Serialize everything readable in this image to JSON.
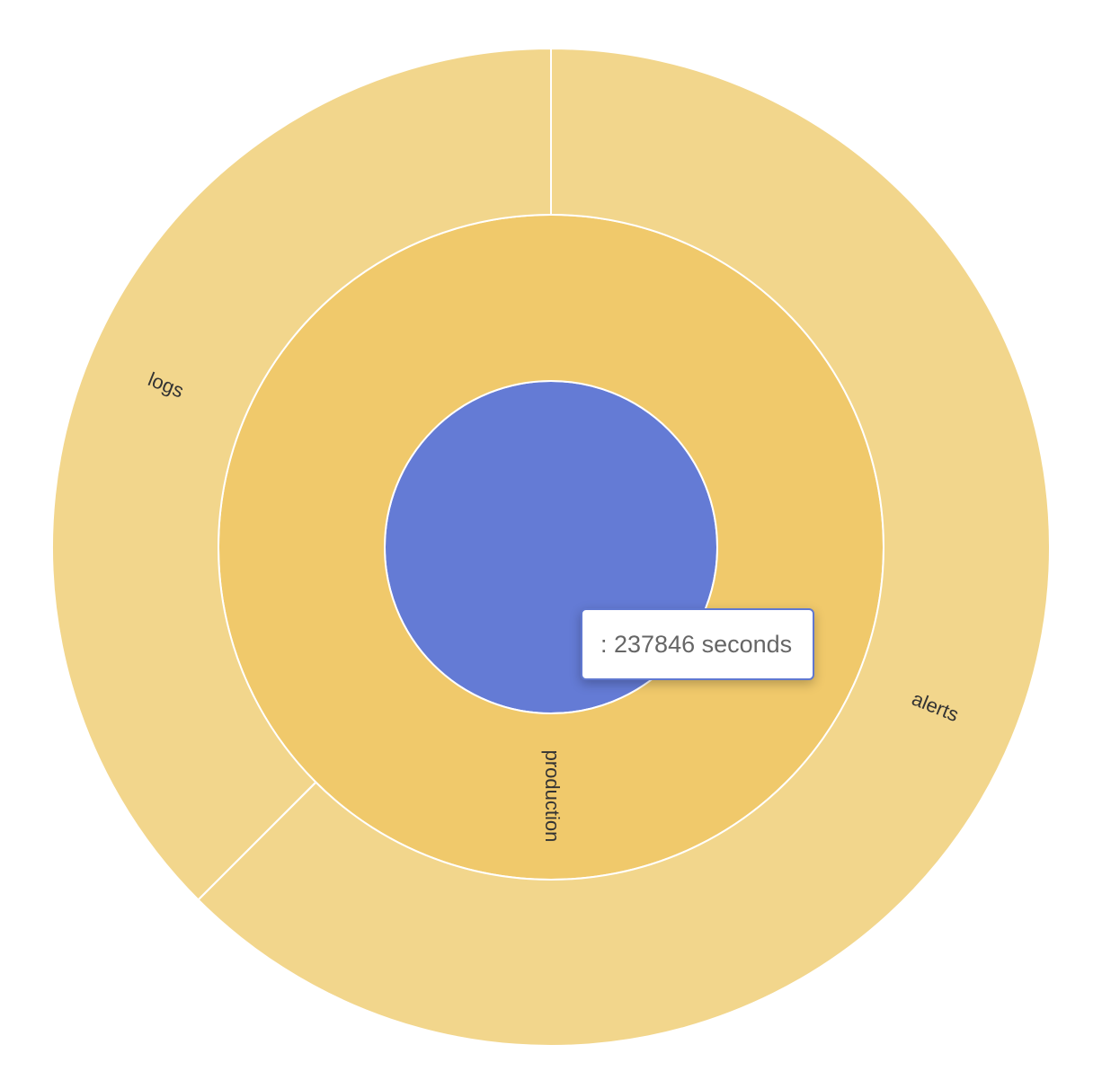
{
  "chart_data": {
    "type": "sunburst",
    "title": "",
    "tooltip": {
      "name": "",
      "value": 237846,
      "unit": "seconds",
      "text": ": 237846 seconds"
    },
    "levels": [
      {
        "level": 0,
        "segments": [
          {
            "name": "",
            "fraction": 1.0,
            "color": "#647bd5"
          }
        ]
      },
      {
        "level": 1,
        "segments": [
          {
            "name": "production",
            "fraction": 1.0,
            "color": "#f0c96b"
          }
        ]
      },
      {
        "level": 2,
        "segments": [
          {
            "name": "alerts",
            "fraction": 0.625,
            "color": "#f2d68c"
          },
          {
            "name": "logs",
            "fraction": 0.375,
            "color": "#f2d68c"
          }
        ]
      }
    ]
  }
}
